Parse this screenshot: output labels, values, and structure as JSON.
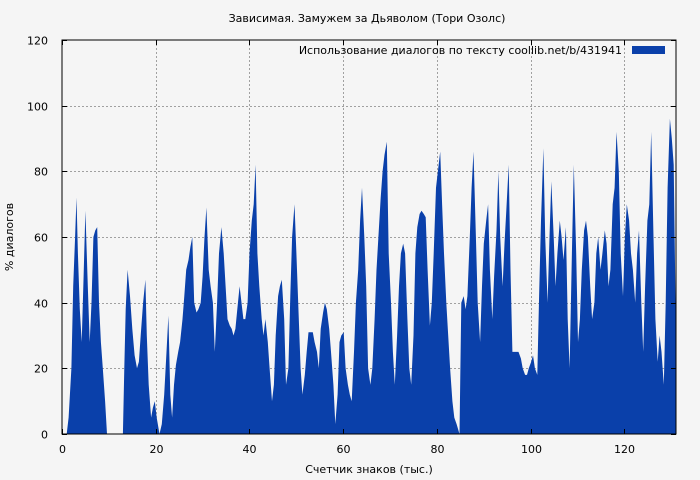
{
  "chart_data": {
    "type": "area",
    "title": "Зависимая. Замужем за Дьяволом (Тори Озолс)",
    "xlabel": "Счетчик знаков (тыс.)",
    "ylabel": "% диалогов",
    "xlim": [
      0,
      131
    ],
    "ylim": [
      0,
      120
    ],
    "x_ticks": [
      0,
      20,
      40,
      60,
      80,
      100,
      120
    ],
    "y_ticks": [
      0,
      20,
      40,
      60,
      80,
      100,
      120
    ],
    "grid": true,
    "legend_position": "top-right",
    "series": [
      {
        "name": "Использование диалогов по тексту  coollib.net/b/431941",
        "color": "#0a40aa",
        "points": [
          [
            0,
            0
          ],
          [
            1,
            0
          ],
          [
            1.4,
            5
          ],
          [
            2,
            20
          ],
          [
            2.4,
            45
          ],
          [
            2.8,
            60
          ],
          [
            3.1,
            72
          ],
          [
            3.4,
            55
          ],
          [
            3.8,
            38
          ],
          [
            4.2,
            28
          ],
          [
            4.6,
            48
          ],
          [
            5,
            68
          ],
          [
            5.5,
            45
          ],
          [
            5.9,
            28
          ],
          [
            6.3,
            40
          ],
          [
            6.7,
            60
          ],
          [
            7.1,
            62
          ],
          [
            7.5,
            63
          ],
          [
            7.9,
            40
          ],
          [
            8.3,
            28
          ],
          [
            8.7,
            20
          ],
          [
            9.2,
            10
          ],
          [
            9.6,
            0
          ],
          [
            13,
            0
          ],
          [
            13.3,
            20
          ],
          [
            13.6,
            38
          ],
          [
            14,
            50
          ],
          [
            14.5,
            42
          ],
          [
            15,
            32
          ],
          [
            15.5,
            24
          ],
          [
            16,
            20
          ],
          [
            16.4,
            22
          ],
          [
            16.8,
            30
          ],
          [
            17.3,
            40
          ],
          [
            17.8,
            47
          ],
          [
            18.1,
            30
          ],
          [
            18.5,
            15
          ],
          [
            19,
            5
          ],
          [
            19.4,
            8
          ],
          [
            19.8,
            10
          ],
          [
            20.2,
            5
          ],
          [
            20.8,
            0
          ],
          [
            21.3,
            3
          ],
          [
            21.8,
            12
          ],
          [
            22.3,
            25
          ],
          [
            22.7,
            36
          ],
          [
            23.1,
            12
          ],
          [
            23.5,
            5
          ],
          [
            23.9,
            15
          ],
          [
            24.3,
            21
          ],
          [
            24.8,
            25
          ],
          [
            25.2,
            28
          ],
          [
            25.7,
            35
          ],
          [
            26.1,
            42
          ],
          [
            26.5,
            50
          ],
          [
            27,
            53
          ],
          [
            27.4,
            57
          ],
          [
            27.8,
            60
          ],
          [
            28.2,
            40
          ],
          [
            28.7,
            37
          ],
          [
            29.1,
            38
          ],
          [
            29.6,
            40
          ],
          [
            30,
            48
          ],
          [
            30.4,
            60
          ],
          [
            30.8,
            69
          ],
          [
            31.3,
            50
          ],
          [
            31.7,
            45
          ],
          [
            32.2,
            40
          ],
          [
            32.6,
            25
          ],
          [
            33.1,
            40
          ],
          [
            33.5,
            55
          ],
          [
            34,
            63
          ],
          [
            34.5,
            55
          ],
          [
            34.9,
            45
          ],
          [
            35.3,
            35
          ],
          [
            35.8,
            33
          ],
          [
            36.2,
            32
          ],
          [
            36.6,
            30
          ],
          [
            37,
            32
          ],
          [
            37.4,
            38
          ],
          [
            37.9,
            45
          ],
          [
            38.3,
            40
          ],
          [
            38.7,
            35
          ],
          [
            39.1,
            35
          ],
          [
            39.6,
            40
          ],
          [
            40,
            55
          ],
          [
            40.5,
            65
          ],
          [
            40.9,
            70
          ],
          [
            41.3,
            82
          ],
          [
            41.7,
            55
          ],
          [
            42.1,
            45
          ],
          [
            42.6,
            35
          ],
          [
            43,
            30
          ],
          [
            43.4,
            35
          ],
          [
            43.9,
            28
          ],
          [
            44.3,
            20
          ],
          [
            44.8,
            10
          ],
          [
            45.2,
            15
          ],
          [
            45.6,
            30
          ],
          [
            46.1,
            42
          ],
          [
            46.5,
            45
          ],
          [
            46.9,
            47
          ],
          [
            47.4,
            35
          ],
          [
            47.8,
            15
          ],
          [
            48.3,
            20
          ],
          [
            48.7,
            42
          ],
          [
            49.1,
            60
          ],
          [
            49.6,
            70
          ],
          [
            50,
            55
          ],
          [
            50.4,
            40
          ],
          [
            50.9,
            20
          ],
          [
            51.3,
            12
          ],
          [
            51.8,
            18
          ],
          [
            52.2,
            25
          ],
          [
            52.6,
            31
          ],
          [
            53.1,
            31
          ],
          [
            53.5,
            31
          ],
          [
            53.9,
            28
          ],
          [
            54.4,
            25
          ],
          [
            54.8,
            20
          ],
          [
            55.2,
            32
          ],
          [
            55.7,
            37
          ],
          [
            56.1,
            40
          ],
          [
            56.5,
            38
          ],
          [
            57,
            32
          ],
          [
            57.4,
            25
          ],
          [
            57.9,
            15
          ],
          [
            58.3,
            3
          ],
          [
            58.8,
            12
          ],
          [
            59.2,
            28
          ],
          [
            59.6,
            30
          ],
          [
            60.1,
            31
          ],
          [
            60.5,
            20
          ],
          [
            61,
            15
          ],
          [
            61.4,
            12
          ],
          [
            61.8,
            10
          ],
          [
            62.3,
            25
          ],
          [
            62.7,
            40
          ],
          [
            63.2,
            50
          ],
          [
            63.6,
            65
          ],
          [
            64,
            75
          ],
          [
            64.5,
            60
          ],
          [
            64.9,
            45
          ],
          [
            65.3,
            20
          ],
          [
            65.8,
            15
          ],
          [
            66.2,
            20
          ],
          [
            66.7,
            35
          ],
          [
            67.1,
            50
          ],
          [
            67.5,
            60
          ],
          [
            68,
            72
          ],
          [
            68.4,
            80
          ],
          [
            68.8,
            85
          ],
          [
            69.3,
            89
          ],
          [
            69.7,
            55
          ],
          [
            70.2,
            40
          ],
          [
            70.6,
            25
          ],
          [
            71,
            15
          ],
          [
            71.5,
            30
          ],
          [
            71.9,
            45
          ],
          [
            72.3,
            55
          ],
          [
            72.8,
            58
          ],
          [
            73.2,
            55
          ],
          [
            73.7,
            35
          ],
          [
            74.1,
            20
          ],
          [
            74.5,
            15
          ],
          [
            75,
            30
          ],
          [
            75.4,
            55
          ],
          [
            75.8,
            63
          ],
          [
            76.3,
            67
          ],
          [
            76.7,
            68
          ],
          [
            77.2,
            67
          ],
          [
            77.6,
            66
          ],
          [
            78,
            50
          ],
          [
            78.5,
            33
          ],
          [
            78.9,
            40
          ],
          [
            79.3,
            55
          ],
          [
            79.8,
            75
          ],
          [
            80.2,
            80
          ],
          [
            80.7,
            86
          ],
          [
            81.1,
            70
          ],
          [
            81.5,
            55
          ],
          [
            82,
            40
          ],
          [
            82.4,
            30
          ],
          [
            82.8,
            20
          ],
          [
            83.3,
            10
          ],
          [
            83.7,
            5
          ],
          [
            84.2,
            3
          ],
          [
            84.8,
            0
          ],
          [
            85.2,
            40
          ],
          [
            85.7,
            42
          ],
          [
            86.1,
            38
          ],
          [
            86.5,
            42
          ],
          [
            87,
            60
          ],
          [
            87.4,
            75
          ],
          [
            87.8,
            86
          ],
          [
            88.3,
            60
          ],
          [
            88.7,
            40
          ],
          [
            89.2,
            28
          ],
          [
            89.6,
            45
          ],
          [
            90,
            58
          ],
          [
            90.5,
            65
          ],
          [
            90.9,
            70
          ],
          [
            91.3,
            50
          ],
          [
            91.8,
            35
          ],
          [
            92.2,
            48
          ],
          [
            92.7,
            62
          ],
          [
            93.1,
            80
          ],
          [
            93.5,
            60
          ],
          [
            94,
            45
          ],
          [
            94.4,
            58
          ],
          [
            94.8,
            68
          ],
          [
            95.3,
            82
          ],
          [
            95.7,
            50
          ],
          [
            96.1,
            25
          ],
          [
            96.6,
            25
          ],
          [
            97,
            25
          ],
          [
            97.4,
            25
          ],
          [
            97.9,
            23
          ],
          [
            98.3,
            20
          ],
          [
            98.8,
            18
          ],
          [
            99.2,
            18
          ],
          [
            99.6,
            20
          ],
          [
            100.1,
            22
          ],
          [
            100.5,
            24
          ],
          [
            100.9,
            20
          ],
          [
            101.4,
            18
          ],
          [
            101.8,
            42
          ],
          [
            102.2,
            65
          ],
          [
            102.7,
            87
          ],
          [
            103.1,
            60
          ],
          [
            103.6,
            40
          ],
          [
            104,
            60
          ],
          [
            104.4,
            77
          ],
          [
            104.9,
            60
          ],
          [
            105.3,
            45
          ],
          [
            105.7,
            55
          ],
          [
            106.2,
            65
          ],
          [
            106.6,
            60
          ],
          [
            107,
            53
          ],
          [
            107.5,
            63
          ],
          [
            107.9,
            35
          ],
          [
            108.3,
            20
          ],
          [
            108.8,
            55
          ],
          [
            109.2,
            82
          ],
          [
            109.7,
            55
          ],
          [
            110.1,
            28
          ],
          [
            110.5,
            35
          ],
          [
            110.9,
            50
          ],
          [
            111.4,
            62
          ],
          [
            111.8,
            65
          ],
          [
            112.2,
            60
          ],
          [
            112.7,
            45
          ],
          [
            113.1,
            35
          ],
          [
            113.6,
            40
          ],
          [
            114,
            55
          ],
          [
            114.4,
            60
          ],
          [
            114.9,
            50
          ],
          [
            115.3,
            55
          ],
          [
            115.8,
            62
          ],
          [
            116.2,
            58
          ],
          [
            116.6,
            45
          ],
          [
            117,
            50
          ],
          [
            117.5,
            70
          ],
          [
            117.9,
            75
          ],
          [
            118.3,
            92
          ],
          [
            118.8,
            80
          ],
          [
            119.2,
            55
          ],
          [
            119.7,
            42
          ],
          [
            120.1,
            60
          ],
          [
            120.5,
            70
          ],
          [
            121,
            65
          ],
          [
            121.4,
            55
          ],
          [
            121.8,
            50
          ],
          [
            122.3,
            40
          ],
          [
            122.7,
            55
          ],
          [
            123.1,
            62
          ],
          [
            123.6,
            40
          ],
          [
            124,
            25
          ],
          [
            124.4,
            45
          ],
          [
            124.9,
            65
          ],
          [
            125.3,
            70
          ],
          [
            125.7,
            92
          ],
          [
            126.2,
            60
          ],
          [
            126.6,
            35
          ],
          [
            127.1,
            22
          ],
          [
            127.5,
            30
          ],
          [
            127.9,
            25
          ],
          [
            128.4,
            15
          ],
          [
            128.8,
            40
          ],
          [
            129.2,
            75
          ],
          [
            129.7,
            96
          ],
          [
            130.1,
            90
          ],
          [
            130.5,
            82
          ],
          [
            130.9,
            40
          ],
          [
            131,
            20
          ]
        ]
      }
    ]
  }
}
